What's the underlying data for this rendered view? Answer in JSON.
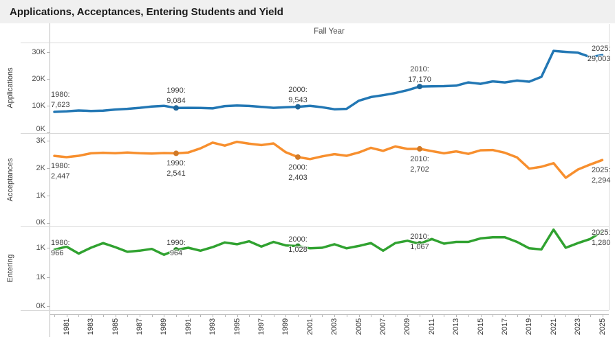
{
  "title": "Applications, Acceptances, Entering Students and Yield",
  "column_header": "Fall Year",
  "x_axis": {
    "tick_labels": [
      "1981",
      "1983",
      "1985",
      "1987",
      "1989",
      "1991",
      "1993",
      "1995",
      "1997",
      "1999",
      "2001",
      "2003",
      "2005",
      "2007",
      "2009",
      "2011",
      "2013",
      "2015",
      "2017",
      "2019",
      "2021",
      "2023",
      "2025"
    ]
  },
  "chart_data": {
    "type": "line",
    "x_label": "Fall Year",
    "x_range": [
      1980,
      2025
    ],
    "years": [
      1980,
      1981,
      1982,
      1983,
      1984,
      1985,
      1986,
      1987,
      1988,
      1989,
      1990,
      1991,
      1992,
      1993,
      1994,
      1995,
      1996,
      1997,
      1998,
      1999,
      2000,
      2001,
      2002,
      2003,
      2004,
      2005,
      2006,
      2007,
      2008,
      2009,
      2010,
      2011,
      2012,
      2013,
      2014,
      2015,
      2016,
      2017,
      2018,
      2019,
      2020,
      2021,
      2022,
      2023,
      2024,
      2025
    ],
    "marker_years": [
      1990,
      2000,
      2010
    ],
    "panels": [
      {
        "name": "applications",
        "row_label": "Applications",
        "color": "#2277B4",
        "ylim": [
          0,
          33500
        ],
        "y_ticks": [
          {
            "v": 0,
            "label": "0K"
          },
          {
            "v": 10000,
            "label": "10K"
          },
          {
            "v": 20000,
            "label": "20K"
          },
          {
            "v": 30000,
            "label": "30K"
          }
        ],
        "values": [
          7623,
          7800,
          8150,
          7950,
          8050,
          8500,
          8750,
          9150,
          9650,
          9900,
          9084,
          9150,
          9100,
          8950,
          9800,
          10000,
          9850,
          9500,
          9150,
          9350,
          9543,
          9900,
          9350,
          8600,
          8750,
          11800,
          13200,
          13900,
          14700,
          15800,
          17170,
          17250,
          17300,
          17500,
          18700,
          18200,
          19100,
          18700,
          19400,
          19000,
          20800,
          30600,
          30200,
          29900,
          28300,
          29003
        ],
        "annotations": [
          {
            "year": 1980,
            "text": "1980:",
            "value": "7,623",
            "mode": "above",
            "halign": "left"
          },
          {
            "year": 1990,
            "text": "1990:",
            "value": "9,084",
            "mode": "above",
            "halign": "center"
          },
          {
            "year": 2000,
            "text": "2000:",
            "value": "9,543",
            "mode": "above",
            "halign": "center"
          },
          {
            "year": 2010,
            "text": "2010:",
            "value": "17,170",
            "mode": "above",
            "halign": "center"
          },
          {
            "year": 2025,
            "text": "2025:",
            "value": "29,003",
            "mode": "above",
            "halign": "right"
          }
        ]
      },
      {
        "name": "acceptances",
        "row_label": "Acceptances",
        "color": "#F78F2E",
        "ylim": [
          0,
          3275
        ],
        "y_ticks": [
          {
            "v": 0,
            "label": "0K"
          },
          {
            "v": 1000,
            "label": "1K"
          },
          {
            "v": 2000,
            "label": "2K"
          },
          {
            "v": 3000,
            "label": "3K"
          }
        ],
        "values": [
          2447,
          2400,
          2450,
          2540,
          2560,
          2545,
          2570,
          2545,
          2530,
          2550,
          2541,
          2570,
          2720,
          2930,
          2820,
          2960,
          2890,
          2840,
          2900,
          2580,
          2403,
          2330,
          2430,
          2510,
          2450,
          2570,
          2740,
          2630,
          2790,
          2700,
          2702,
          2620,
          2540,
          2610,
          2520,
          2650,
          2660,
          2560,
          2390,
          1980,
          2050,
          2180,
          1650,
          1950,
          2130,
          2294
        ],
        "annotations": [
          {
            "year": 1980,
            "text": "1980:",
            "value": "2,447",
            "mode": "below",
            "halign": "left"
          },
          {
            "year": 1990,
            "text": "1990:",
            "value": "2,541",
            "mode": "below",
            "halign": "center"
          },
          {
            "year": 2000,
            "text": "2000:",
            "value": "2,403",
            "mode": "below",
            "halign": "center"
          },
          {
            "year": 2010,
            "text": "2010:",
            "value": "2,702",
            "mode": "below",
            "halign": "center"
          },
          {
            "year": 2025,
            "text": "2025:",
            "value": "2,294",
            "mode": "below",
            "halign": "right"
          }
        ]
      },
      {
        "name": "entering",
        "row_label": "Entering",
        "color": "#30A230",
        "ylim": [
          0,
          1435
        ],
        "y_ticks": [
          {
            "v": 0,
            "label": "0K"
          },
          {
            "v": 500,
            "label": "1K"
          },
          {
            "v": 1000,
            "label": "1K"
          }
        ],
        "values": [
          966,
          1020,
          900,
          1000,
          1080,
          1010,
          930,
          950,
          980,
          880,
          964,
          1000,
          950,
          1010,
          1090,
          1060,
          1110,
          1020,
          1100,
          1040,
          1028,
          990,
          1000,
          1060,
          990,
          1030,
          1080,
          950,
          1080,
          1120,
          1067,
          1150,
          1070,
          1100,
          1100,
          1160,
          1180,
          1180,
          1100,
          990,
          970,
          1310,
          1000,
          1080,
          1150,
          1280
        ],
        "annotations": [
          {
            "year": 1980,
            "text": "1980:",
            "value": "966",
            "mode": "straddle",
            "halign": "left"
          },
          {
            "year": 1990,
            "text": "1990:",
            "value": "964",
            "mode": "straddle",
            "halign": "center"
          },
          {
            "year": 2000,
            "text": "2000:",
            "value": "1,028",
            "mode": "straddle",
            "halign": "center"
          },
          {
            "year": 2010,
            "text": "2010:",
            "value": "1,067",
            "mode": "straddle",
            "halign": "center"
          },
          {
            "year": 2025,
            "text": "2025:",
            "value": "1,280",
            "mode": "straddle",
            "halign": "right"
          }
        ]
      }
    ]
  }
}
